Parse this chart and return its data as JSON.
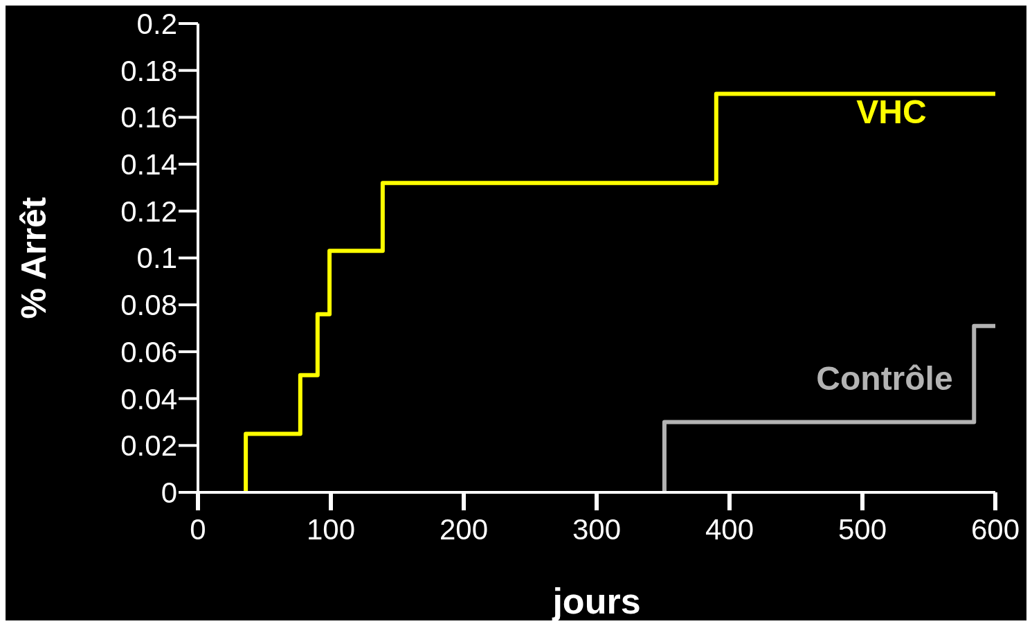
{
  "chart_data": {
    "type": "step",
    "xlabel": "jours",
    "ylabel": "% Arrêt",
    "xlim": [
      0,
      600
    ],
    "xticks": [
      0,
      100,
      200,
      300,
      400,
      500,
      600
    ],
    "ylim": [
      0,
      0.2
    ],
    "yticks": [
      0,
      0.02,
      0.04,
      0.06,
      0.08,
      0.1,
      0.12,
      0.14,
      0.16,
      0.18,
      0.2
    ],
    "grid": false,
    "legend": false,
    "series": [
      {
        "name": "VHC",
        "color": "#ffff00",
        "x": [
          36,
          36,
          77,
          90,
          99,
          139,
          390,
          600
        ],
        "values": [
          0,
          0.025,
          0.05,
          0.076,
          0.103,
          0.132,
          0.17,
          0.17
        ]
      },
      {
        "name": "Contrôle",
        "color": "#b3b3b3",
        "x": [
          351,
          351,
          584,
          600
        ],
        "values": [
          0,
          0.03,
          0.071,
          0.071
        ]
      }
    ]
  }
}
